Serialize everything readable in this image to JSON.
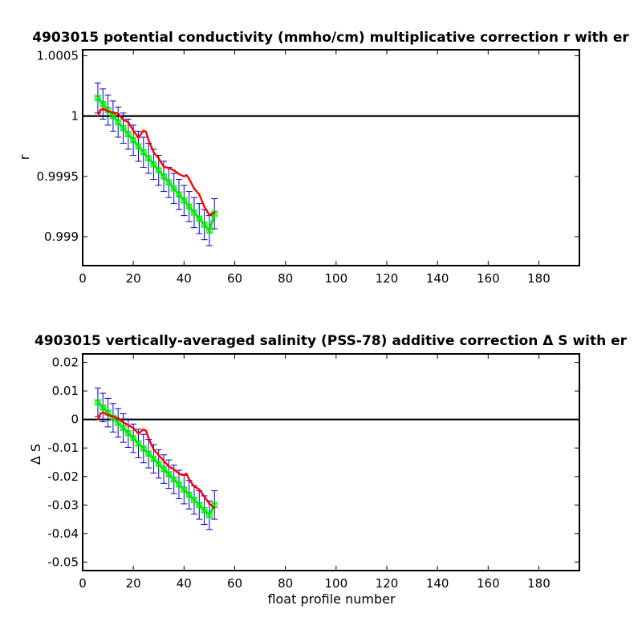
{
  "colors": {
    "errorbar": "#0000cc",
    "series_marker": "#00ee00",
    "series_line": "#ff0000",
    "zero_line": "#000000",
    "axes": "#000000"
  },
  "chart_data": [
    {
      "type": "line",
      "title": "4903015 potential conductivity (mmho/cm) multiplicative correction r with er",
      "xlabel": "",
      "ylabel": "r",
      "xlim": [
        0,
        196
      ],
      "ylim": [
        0.99876,
        1.00055
      ],
      "xticks": [
        0,
        20,
        40,
        60,
        80,
        100,
        120,
        140,
        160,
        180
      ],
      "xtick_labels": [
        "0",
        "20",
        "40",
        "60",
        "80",
        "100",
        "120",
        "140",
        "160",
        "180"
      ],
      "yticks": [
        1.0005,
        1,
        0.9995,
        0.999
      ],
      "ytick_labels": [
        "1.0005",
        "1",
        "0.9995",
        "0.999"
      ],
      "grid": false,
      "reference_line": 1,
      "error_half_width": 0.000125,
      "series": [
        {
          "kind": "fit-with-errorbars",
          "x": [
            6,
            8,
            10,
            12,
            14,
            16,
            18,
            20,
            22,
            24,
            26,
            28,
            30,
            32,
            34,
            36,
            38,
            40,
            42,
            44,
            46,
            48,
            50,
            52
          ],
          "values": [
            1.00015,
            1.0001,
            1.00005,
            1.0,
            0.99995,
            0.9999,
            0.99985,
            0.9998,
            0.99975,
            0.9997,
            0.99965,
            0.9996,
            0.99955,
            0.9995,
            0.99945,
            0.9994,
            0.99935,
            0.9993,
            0.99925,
            0.9992,
            0.99915,
            0.9991,
            0.99905,
            0.99919
          ]
        },
        {
          "kind": "estimate",
          "x": [
            6,
            7,
            8,
            10,
            12,
            14,
            16,
            18,
            20,
            22,
            24,
            25,
            26,
            28,
            30,
            32,
            34,
            36,
            38,
            40,
            41,
            42,
            44,
            46,
            48,
            50,
            52
          ],
          "values": [
            1.0,
            1.00005,
            1.00006,
            1.00004,
            1.00003,
            1.00002,
            0.99997,
            0.99995,
            0.99988,
            0.99982,
            0.99988,
            0.99987,
            0.9998,
            0.9997,
            0.99965,
            0.99958,
            0.99957,
            0.99955,
            0.99952,
            0.9995,
            0.99951,
            0.99948,
            0.9994,
            0.99935,
            0.99925,
            0.99918,
            0.9992
          ]
        }
      ]
    },
    {
      "type": "line",
      "title": "4903015 vertically-averaged salinity (PSS-78) additive correction Δ S with er",
      "xlabel": "float profile number",
      "ylabel": "Δ S",
      "xlim": [
        0,
        196
      ],
      "ylim": [
        -0.053,
        0.023
      ],
      "xticks": [
        0,
        20,
        40,
        60,
        80,
        100,
        120,
        140,
        160,
        180
      ],
      "xtick_labels": [
        "0",
        "20",
        "40",
        "60",
        "80",
        "100",
        "120",
        "140",
        "160",
        "180"
      ],
      "yticks": [
        0.02,
        0.01,
        0,
        -0.01,
        -0.02,
        -0.03,
        -0.04,
        -0.05
      ],
      "ytick_labels": [
        "0.02",
        "0.01",
        "0",
        "-0.01",
        "-0.02",
        "-0.03",
        "-0.04",
        "-0.05"
      ],
      "grid": false,
      "reference_line": 0,
      "error_half_width": 0.005,
      "series": [
        {
          "kind": "fit-with-errorbars",
          "x": [
            6,
            8,
            10,
            12,
            14,
            16,
            18,
            20,
            22,
            24,
            26,
            28,
            30,
            32,
            34,
            36,
            38,
            40,
            42,
            44,
            46,
            48,
            50,
            52
          ],
          "values": [
            0.006,
            0.0042,
            0.0024,
            0.0006,
            -0.0012,
            -0.003,
            -0.0048,
            -0.0066,
            -0.0084,
            -0.0102,
            -0.012,
            -0.0138,
            -0.0156,
            -0.0174,
            -0.0192,
            -0.021,
            -0.0228,
            -0.0246,
            -0.0264,
            -0.0282,
            -0.03,
            -0.0318,
            -0.0336,
            -0.03
          ]
        },
        {
          "kind": "estimate",
          "x": [
            6,
            7,
            8,
            10,
            12,
            14,
            16,
            18,
            20,
            22,
            24,
            25,
            26,
            28,
            30,
            32,
            34,
            36,
            38,
            40,
            41,
            42,
            44,
            46,
            48,
            50,
            52
          ],
          "values": [
            0.0,
            0.002,
            0.0025,
            0.0015,
            0.001,
            0.0005,
            -0.001,
            -0.002,
            -0.003,
            -0.005,
            -0.0035,
            -0.004,
            -0.0065,
            -0.0105,
            -0.0125,
            -0.0145,
            -0.0165,
            -0.0175,
            -0.019,
            -0.0195,
            -0.019,
            -0.021,
            -0.0235,
            -0.0245,
            -0.027,
            -0.0295,
            -0.031
          ]
        }
      ]
    }
  ]
}
